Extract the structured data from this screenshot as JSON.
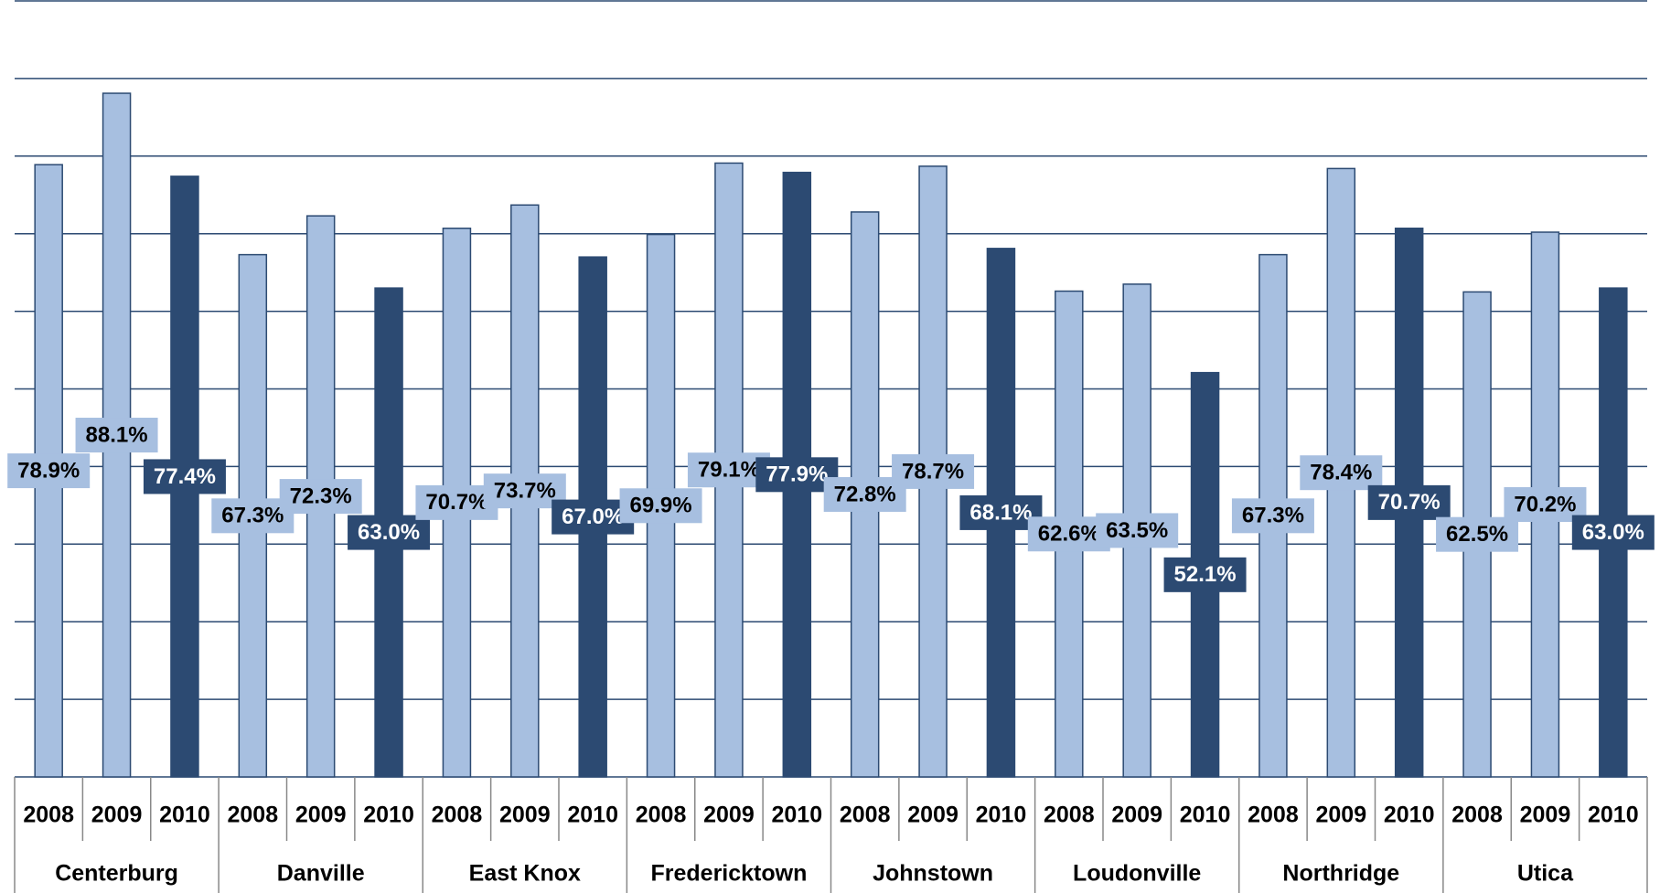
{
  "chart_data": {
    "type": "bar",
    "categories": [
      "Centerburg",
      "Danville",
      "East Knox",
      "Fredericktown",
      "Johnstown",
      "Loudonville",
      "Northridge",
      "Utica"
    ],
    "series": [
      {
        "name": "2008",
        "color": "#a7bfe0",
        "values": [
          78.9,
          67.3,
          70.7,
          69.9,
          72.8,
          62.6,
          67.3,
          62.5
        ],
        "value_labels": [
          "78.9%",
          "67.3%",
          "70.7%",
          "69.9%",
          "72.8%",
          "62.6%",
          "67.3%",
          "62.5%"
        ]
      },
      {
        "name": "2009",
        "color": "#a7bfe0",
        "values": [
          88.1,
          72.3,
          73.7,
          79.1,
          78.7,
          63.5,
          78.4,
          70.2
        ],
        "value_labels": [
          "88.1%",
          "72.3%",
          "73.7%",
          "79.1%",
          "78.7%",
          "63.5%",
          "78.4%",
          "70.2%"
        ]
      },
      {
        "name": "2010",
        "color": "#2c4a72",
        "values": [
          77.4,
          63.0,
          67.0,
          77.9,
          68.1,
          52.1,
          70.7,
          63.0
        ],
        "value_labels": [
          "77.4%",
          "63.0%",
          "67.0%",
          "77.9%",
          "68.1%",
          "52.1%",
          "70.7%",
          "63.0%"
        ]
      }
    ],
    "ylim": [
      0,
      100
    ],
    "yticks": [
      0,
      10,
      20,
      30,
      40,
      50,
      60,
      70,
      80,
      90,
      100
    ],
    "grid": true
  }
}
